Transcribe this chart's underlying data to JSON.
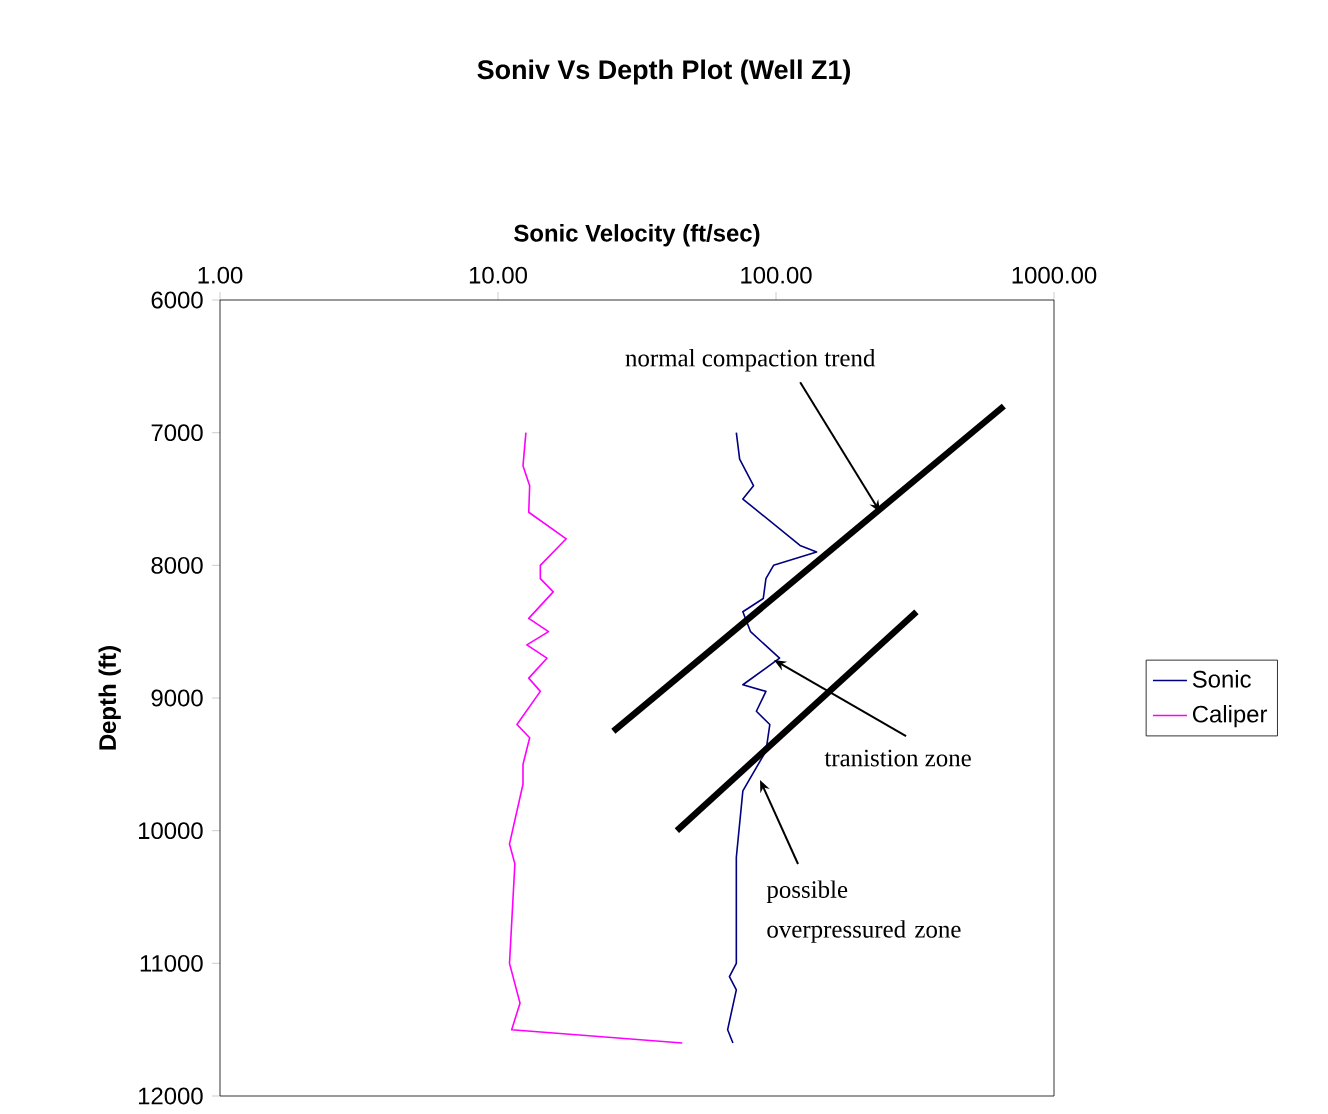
{
  "chart_data": {
    "type": "line",
    "title": "Soniv Vs Depth Plot (Well Z1)",
    "xlabel": "Sonic Velocity (ft/sec)",
    "ylabel": "Depth (ft)",
    "log": "x",
    "xlim": [
      1,
      1000
    ],
    "ylim": [
      12000,
      6000
    ],
    "xticks": [
      {
        "value": 1,
        "label": "1.00"
      },
      {
        "value": 10,
        "label": "10.00"
      },
      {
        "value": 100,
        "label": "100.00"
      },
      {
        "value": 1000,
        "label": "1000.00"
      }
    ],
    "yticks": [
      6000,
      7000,
      8000,
      9000,
      10000,
      11000,
      12000
    ],
    "grid": false,
    "legend": "right",
    "series": [
      {
        "name": "Sonic",
        "color": "#000080",
        "x": [
          72,
          74,
          83,
          76,
          122,
          140,
          98,
          92,
          90,
          76,
          81,
          103,
          76,
          92,
          85,
          95,
          92,
          76,
          72,
          72,
          68,
          72,
          67,
          70
        ],
        "values": [
          7000,
          7200,
          7400,
          7500,
          7850,
          7900,
          8000,
          8100,
          8250,
          8350,
          8500,
          8700,
          8900,
          8950,
          9100,
          9200,
          9400,
          9700,
          10200,
          11000,
          11100,
          11200,
          11500,
          11600
        ]
      },
      {
        "name": "Caliper",
        "color": "#ff00ff",
        "x": [
          12.6,
          12.3,
          13.0,
          12.9,
          17.6,
          14.2,
          14.2,
          15.8,
          12.9,
          15.2,
          12.7,
          15.0,
          12.9,
          14.2,
          11.7,
          13.0,
          12.3,
          12.3,
          11.0,
          11.5,
          11.0,
          12.0,
          11.2,
          46
        ],
        "values": [
          7000,
          7250,
          7400,
          7600,
          7800,
          8000,
          8100,
          8200,
          8400,
          8500,
          8600,
          8700,
          8850,
          8950,
          9200,
          9300,
          9500,
          9650,
          10100,
          10250,
          11000,
          11300,
          11500,
          11600
        ]
      },
      {
        "color": "#000000",
        "x": [
          26,
          660
        ],
        "values": [
          9250,
          6800
        ]
      },
      {
        "color": "#000000",
        "x": [
          44,
          320
        ],
        "values": [
          10000,
          8350
        ]
      }
    ],
    "annotations": [
      {
        "text": "normal compaction trend",
        "x": 237,
        "y": 7600
      },
      {
        "text": "tranistion zone",
        "x": 98.4,
        "y": 8714
      },
      {
        "text": "possible overpressured zone",
        "x": 87.6,
        "y": 9618
      }
    ]
  }
}
